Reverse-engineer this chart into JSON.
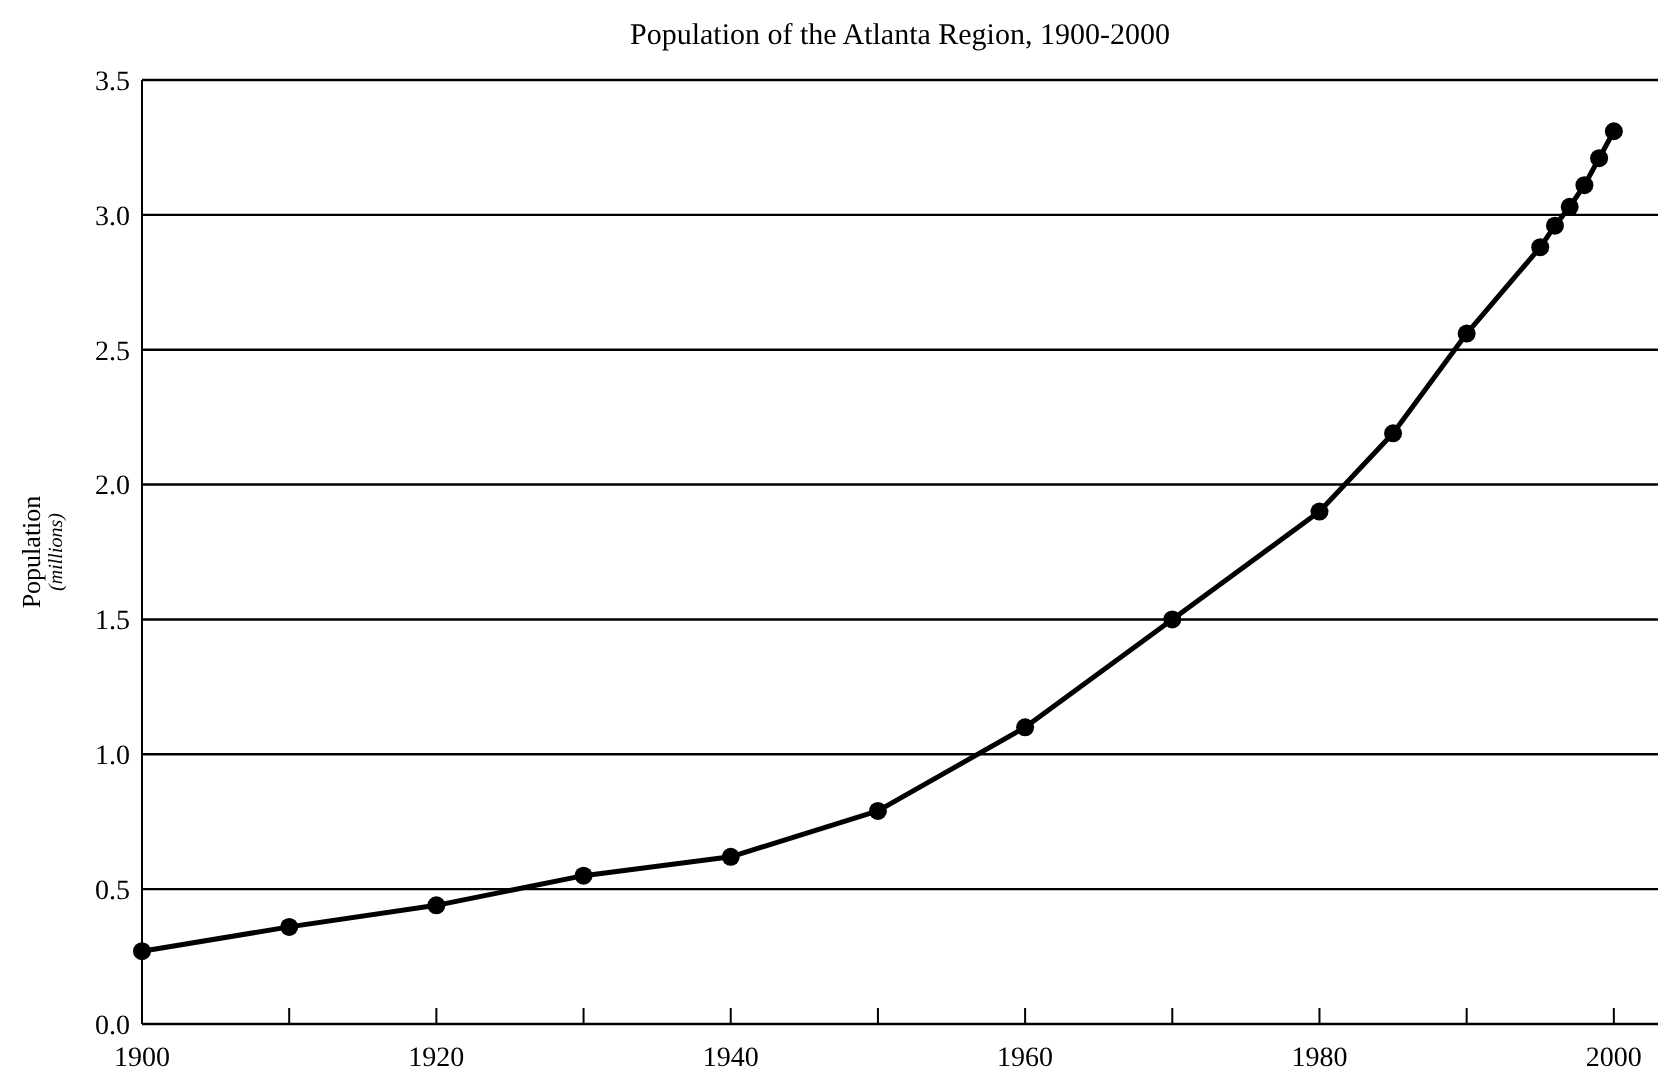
{
  "chart_data": {
    "type": "line",
    "title": "Population of the Atlanta Region, 1900-2000",
    "ylabel": "Population (millions)",
    "x": [
      1900,
      1910,
      1920,
      1930,
      1940,
      1950,
      1960,
      1970,
      1980,
      1985,
      1990,
      1995,
      1996,
      1997,
      1998,
      1999,
      2000
    ],
    "series": [
      {
        "color": "#000000",
        "values": [
          0.27,
          0.36,
          0.44,
          0.55,
          0.62,
          0.79,
          1.1,
          1.5,
          1.9,
          2.19,
          2.56,
          2.88,
          2.96,
          3.03,
          3.11,
          3.21,
          3.31
        ]
      }
    ],
    "xlim": [
      1900,
      2003
    ],
    "ylim": [
      0,
      3.5
    ],
    "xticks": [
      1900,
      {
        "value": 1910,
        "label": null
      },
      1920,
      {
        "value": 1930,
        "label": null
      },
      1940,
      {
        "value": 1950,
        "label": null
      },
      1960,
      {
        "value": 1970,
        "label": null
      },
      1980,
      {
        "value": 1990,
        "label": null
      },
      2000
    ],
    "yticks": [
      {
        "value": 0,
        "label": "0.0"
      },
      0.5,
      {
        "value": 1,
        "label": "1.0"
      },
      1.5,
      {
        "value": 2,
        "label": "2.0"
      },
      2.5,
      {
        "value": 3,
        "label": "3.0"
      },
      3.5
    ],
    "grid": "y",
    "marker": "circle",
    "line_style": "solid"
  }
}
